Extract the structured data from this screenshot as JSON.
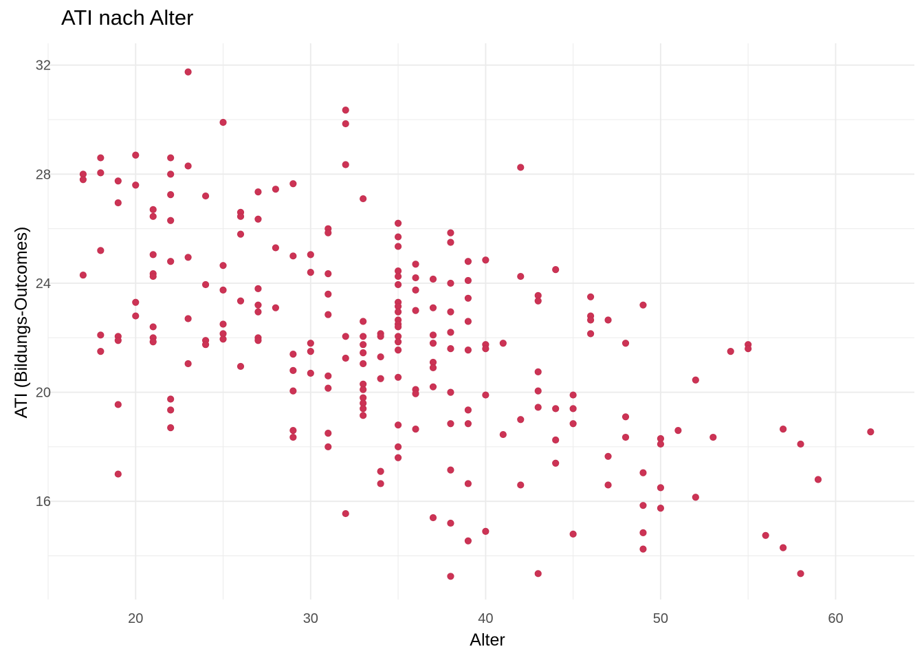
{
  "chart_data": {
    "type": "scatter",
    "title": "ATI nach Alter",
    "xlabel": "Alter",
    "ylabel": "ATI (Bildungs-Outcomes)",
    "xlim": [
      15,
      64.5
    ],
    "ylim": [
      12.4,
      32.8
    ],
    "x_ticks": [
      20,
      30,
      40,
      50,
      60
    ],
    "y_ticks": [
      16,
      20,
      24,
      28,
      32
    ],
    "x_tick_labels": [
      "20",
      "30",
      "40",
      "50",
      "60"
    ],
    "y_tick_labels": [
      "16",
      "20",
      "24",
      "28",
      "32"
    ],
    "grid": true,
    "point_color": "#cc3355",
    "points": [
      [
        17,
        28.0
      ],
      [
        17,
        27.8
      ],
      [
        17,
        24.3
      ],
      [
        18,
        28.6
      ],
      [
        18,
        28.05
      ],
      [
        18,
        25.2
      ],
      [
        18,
        22.1
      ],
      [
        18,
        21.5
      ],
      [
        19,
        27.75
      ],
      [
        19,
        26.95
      ],
      [
        19,
        22.05
      ],
      [
        19,
        21.9
      ],
      [
        19,
        19.55
      ],
      [
        19,
        17.0
      ],
      [
        20,
        28.7
      ],
      [
        20,
        27.6
      ],
      [
        20,
        23.3
      ],
      [
        20,
        22.8
      ],
      [
        21,
        26.7
      ],
      [
        21,
        26.45
      ],
      [
        21,
        25.05
      ],
      [
        21,
        24.35
      ],
      [
        21,
        24.25
      ],
      [
        21,
        22.4
      ],
      [
        21,
        22.0
      ],
      [
        21,
        21.85
      ],
      [
        22,
        28.6
      ],
      [
        22,
        28.0
      ],
      [
        22,
        27.25
      ],
      [
        22,
        26.3
      ],
      [
        22,
        24.8
      ],
      [
        22,
        19.75
      ],
      [
        22,
        19.35
      ],
      [
        22,
        18.7
      ],
      [
        23,
        31.75
      ],
      [
        23,
        28.3
      ],
      [
        23,
        24.95
      ],
      [
        23,
        22.7
      ],
      [
        23,
        21.05
      ],
      [
        24,
        27.2
      ],
      [
        24,
        23.95
      ],
      [
        24,
        21.9
      ],
      [
        24,
        21.75
      ],
      [
        25,
        29.9
      ],
      [
        25,
        24.65
      ],
      [
        25,
        23.75
      ],
      [
        25,
        22.5
      ],
      [
        25,
        22.15
      ],
      [
        25,
        21.95
      ],
      [
        26,
        26.6
      ],
      [
        26,
        26.45
      ],
      [
        26,
        25.8
      ],
      [
        26,
        23.35
      ],
      [
        26,
        20.95
      ],
      [
        27,
        27.35
      ],
      [
        27,
        26.35
      ],
      [
        27,
        23.8
      ],
      [
        27,
        23.2
      ],
      [
        27,
        22.95
      ],
      [
        27,
        22.0
      ],
      [
        27,
        21.9
      ],
      [
        28,
        27.45
      ],
      [
        28,
        25.3
      ],
      [
        28,
        23.1
      ],
      [
        29,
        27.65
      ],
      [
        29,
        25.0
      ],
      [
        29,
        21.4
      ],
      [
        29,
        20.8
      ],
      [
        29,
        20.05
      ],
      [
        29,
        18.6
      ],
      [
        29,
        18.35
      ],
      [
        30,
        25.05
      ],
      [
        30,
        24.4
      ],
      [
        30,
        21.8
      ],
      [
        30,
        21.5
      ],
      [
        30,
        20.7
      ],
      [
        31,
        26.0
      ],
      [
        31,
        25.85
      ],
      [
        31,
        24.35
      ],
      [
        31,
        23.6
      ],
      [
        31,
        22.85
      ],
      [
        31,
        20.6
      ],
      [
        31,
        20.15
      ],
      [
        31,
        18.5
      ],
      [
        31,
        18.0
      ],
      [
        32,
        30.35
      ],
      [
        32,
        29.85
      ],
      [
        32,
        28.35
      ],
      [
        32,
        22.05
      ],
      [
        32,
        21.25
      ],
      [
        32,
        15.55
      ],
      [
        33,
        27.1
      ],
      [
        33,
        22.6
      ],
      [
        33,
        22.05
      ],
      [
        33,
        21.75
      ],
      [
        33,
        21.45
      ],
      [
        33,
        21.05
      ],
      [
        33,
        20.3
      ],
      [
        33,
        20.1
      ],
      [
        33,
        19.8
      ],
      [
        33,
        19.6
      ],
      [
        33,
        19.4
      ],
      [
        33,
        19.15
      ],
      [
        34,
        22.15
      ],
      [
        34,
        22.05
      ],
      [
        34,
        21.3
      ],
      [
        34,
        20.5
      ],
      [
        34,
        17.1
      ],
      [
        34,
        16.65
      ],
      [
        35,
        26.2
      ],
      [
        35,
        25.7
      ],
      [
        35,
        25.35
      ],
      [
        35,
        24.45
      ],
      [
        35,
        24.25
      ],
      [
        35,
        23.95
      ],
      [
        35,
        23.3
      ],
      [
        35,
        23.15
      ],
      [
        35,
        22.95
      ],
      [
        35,
        22.65
      ],
      [
        35,
        22.5
      ],
      [
        35,
        22.4
      ],
      [
        35,
        22.05
      ],
      [
        35,
        21.85
      ],
      [
        35,
        21.55
      ],
      [
        35,
        20.55
      ],
      [
        35,
        18.8
      ],
      [
        35,
        18.0
      ],
      [
        35,
        17.6
      ],
      [
        36,
        24.7
      ],
      [
        36,
        24.2
      ],
      [
        36,
        23.75
      ],
      [
        36,
        23.0
      ],
      [
        36,
        20.1
      ],
      [
        36,
        19.95
      ],
      [
        36,
        18.65
      ],
      [
        37,
        24.15
      ],
      [
        37,
        23.1
      ],
      [
        37,
        22.1
      ],
      [
        37,
        21.8
      ],
      [
        37,
        21.1
      ],
      [
        37,
        20.9
      ],
      [
        37,
        20.2
      ],
      [
        37,
        15.4
      ],
      [
        38,
        25.85
      ],
      [
        38,
        25.5
      ],
      [
        38,
        24.0
      ],
      [
        38,
        22.95
      ],
      [
        38,
        22.2
      ],
      [
        38,
        21.6
      ],
      [
        38,
        20.0
      ],
      [
        38,
        18.85
      ],
      [
        38,
        17.15
      ],
      [
        38,
        15.2
      ],
      [
        38,
        13.25
      ],
      [
        39,
        24.8
      ],
      [
        39,
        24.1
      ],
      [
        39,
        23.45
      ],
      [
        39,
        22.6
      ],
      [
        39,
        21.55
      ],
      [
        39,
        19.35
      ],
      [
        39,
        18.85
      ],
      [
        39,
        16.65
      ],
      [
        39,
        14.55
      ],
      [
        40,
        24.85
      ],
      [
        40,
        21.75
      ],
      [
        40,
        21.6
      ],
      [
        40,
        19.9
      ],
      [
        40,
        14.9
      ],
      [
        41,
        21.8
      ],
      [
        41,
        18.45
      ],
      [
        42,
        28.25
      ],
      [
        42,
        24.25
      ],
      [
        42,
        19.0
      ],
      [
        42,
        16.6
      ],
      [
        43,
        23.55
      ],
      [
        43,
        23.35
      ],
      [
        43,
        20.75
      ],
      [
        43,
        20.05
      ],
      [
        43,
        19.45
      ],
      [
        43,
        13.35
      ],
      [
        44,
        24.5
      ],
      [
        44,
        19.4
      ],
      [
        44,
        18.25
      ],
      [
        44,
        17.4
      ],
      [
        45,
        19.9
      ],
      [
        45,
        19.4
      ],
      [
        45,
        18.85
      ],
      [
        45,
        14.8
      ],
      [
        46,
        23.5
      ],
      [
        46,
        22.8
      ],
      [
        46,
        22.65
      ],
      [
        46,
        22.15
      ],
      [
        47,
        22.65
      ],
      [
        47,
        17.65
      ],
      [
        47,
        16.6
      ],
      [
        48,
        21.8
      ],
      [
        48,
        19.1
      ],
      [
        48,
        18.35
      ],
      [
        49,
        23.2
      ],
      [
        49,
        17.05
      ],
      [
        49,
        15.85
      ],
      [
        49,
        14.85
      ],
      [
        49,
        14.25
      ],
      [
        50,
        18.3
      ],
      [
        50,
        18.1
      ],
      [
        50,
        16.5
      ],
      [
        50,
        15.75
      ],
      [
        51,
        18.6
      ],
      [
        52,
        20.45
      ],
      [
        52,
        16.15
      ],
      [
        53,
        18.35
      ],
      [
        54,
        21.5
      ],
      [
        55,
        21.75
      ],
      [
        55,
        21.6
      ],
      [
        56,
        14.75
      ],
      [
        57,
        18.65
      ],
      [
        57,
        14.3
      ],
      [
        58,
        18.1
      ],
      [
        58,
        13.35
      ],
      [
        59,
        16.8
      ],
      [
        62,
        18.55
      ]
    ]
  }
}
